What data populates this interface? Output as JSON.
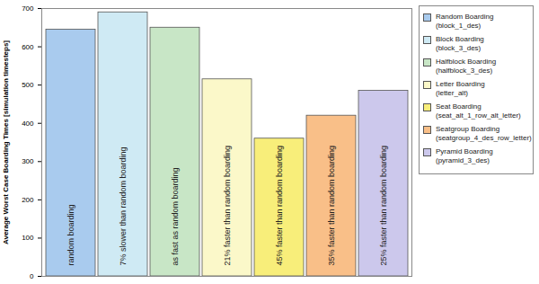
{
  "chart_data": {
    "type": "bar",
    "y_label": "Average Worst Case Boarding Times [simulation timesteps]",
    "categories": [
      "Random Boarding (block_1_des)",
      "Block Boarding (block_3_des)",
      "Halfblock Boarding (halfblock_3_des)",
      "Letter Boarding (letter_alt)",
      "Seat Boarding (seat_alt_1_row_alt_letter)",
      "Seatgroup Boarding (seatgroup_4_des_row_letter)",
      "Pyramid Boarding (pyramid_3_des)"
    ],
    "values": [
      645,
      690,
      650,
      515,
      360,
      420,
      485
    ],
    "annotations": [
      "random boarding",
      "7% slower than random boarding",
      "as fast as random boarding",
      "21% faster than random boarding",
      "45% faster than random boarding",
      "35% faster than random boarding",
      "25% faster than random boarding"
    ],
    "colors": [
      "#a9cbee",
      "#cfeaf4",
      "#c8e6c6",
      "#fbf8c9",
      "#f8ee7a",
      "#f9bf88",
      "#ccc8ec"
    ],
    "ylim": [
      0,
      700
    ],
    "yticks": [
      0,
      100,
      200,
      300,
      400,
      500,
      600,
      700
    ],
    "grid": false,
    "legend": "right",
    "tick_labels": "y"
  }
}
